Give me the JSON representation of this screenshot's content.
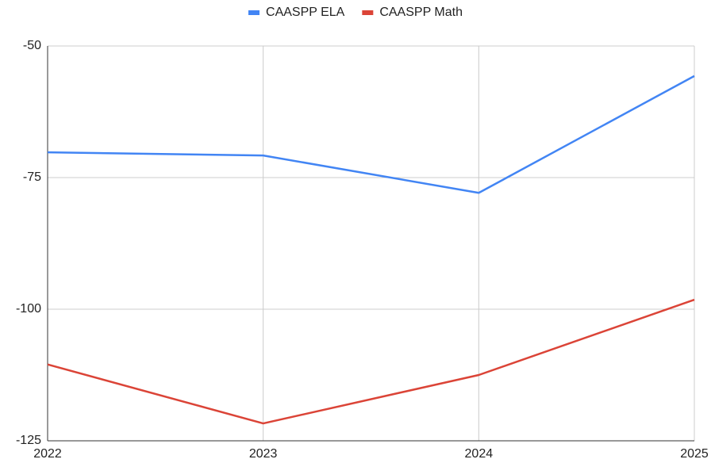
{
  "chart_data": {
    "type": "line",
    "x": [
      2022,
      2023,
      2024,
      2025
    ],
    "series": [
      {
        "name": "CAASPP ELA",
        "color": "#4285f4",
        "values": [
          -70.2,
          -70.8,
          -77.9,
          -55.7
        ]
      },
      {
        "name": "CAASPP Math",
        "color": "#db4437",
        "values": [
          -110.5,
          -121.7,
          -112.5,
          -98.2
        ]
      }
    ],
    "xlim": [
      2022,
      2025
    ],
    "xticks": [
      2022,
      2023,
      2024,
      2025
    ],
    "ylim": [
      -125,
      -50
    ],
    "yticks": [
      -125,
      -100,
      -75,
      -50
    ],
    "grid": true,
    "legend": "top"
  }
}
